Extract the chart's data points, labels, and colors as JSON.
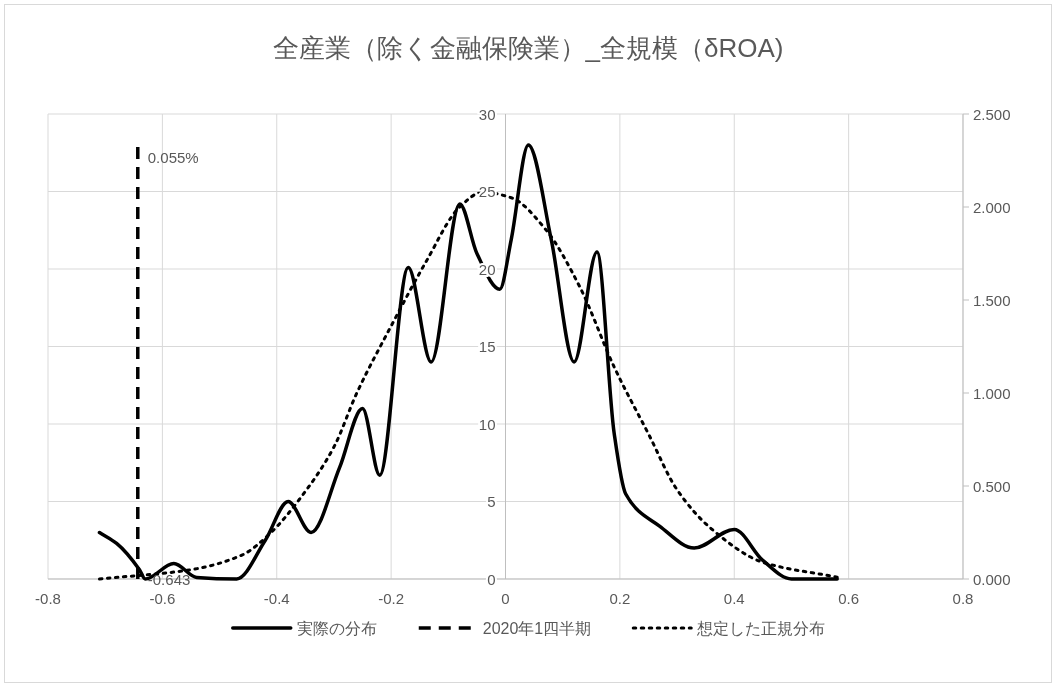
{
  "chart_data": {
    "type": "line",
    "title": "全産業（除く金融保険業）_全規模（δROA)",
    "series": [
      {
        "name": "実際の分布",
        "color": "#000000",
        "line_style": "solid",
        "x": [
          -0.71,
          -0.68,
          -0.64,
          -0.63,
          -0.58,
          -0.54,
          -0.47,
          -0.42,
          -0.38,
          -0.34,
          -0.29,
          -0.25,
          -0.22,
          -0.17,
          -0.13,
          -0.08,
          -0.05,
          -0.01,
          0.01,
          0.04,
          0.08,
          0.12,
          0.16,
          0.19,
          0.21,
          0.27,
          0.33,
          0.4,
          0.45,
          0.5,
          0.58
        ],
        "values": [
          3.0,
          2.3,
          0.6,
          0,
          1.0,
          0.1,
          0,
          2.5,
          5.0,
          3.0,
          7.2,
          11.0,
          6.7,
          20.1,
          14.0,
          24.2,
          21.0,
          18.7,
          21.9,
          28.0,
          21.9,
          14.0,
          21.1,
          9.4,
          5.5,
          3.4,
          2.0,
          3.2,
          1.2,
          0,
          0
        ]
      },
      {
        "name": "2020年1四半期",
        "color": "#000000",
        "line_style": "dashed",
        "x": [
          -0.643,
          -0.643
        ],
        "values": [
          0,
          28.1
        ]
      },
      {
        "name": "想定した正規分布",
        "color": "#000000",
        "line_style": "dotted",
        "axis": "y2",
        "x": [
          -0.71,
          -0.55,
          -0.46,
          -0.41,
          -0.36,
          -0.3,
          -0.26,
          -0.2,
          -0.14,
          -0.08,
          -0.04,
          0.01,
          0.07,
          0.13,
          0.19,
          0.25,
          0.3,
          0.36,
          0.45,
          0.58
        ],
        "values": [
          0,
          0.05,
          0.13,
          0.25,
          0.43,
          0.71,
          1.0,
          1.36,
          1.7,
          2.0,
          2.08,
          2.05,
          1.88,
          1.57,
          1.14,
          0.78,
          0.48,
          0.27,
          0.09,
          0.01
        ]
      }
    ],
    "xlim": [
      -0.8,
      0.8
    ],
    "xticks": [
      -0.8,
      -0.6,
      -0.4,
      -0.2,
      0,
      0.2,
      0.4,
      0.6,
      0.8
    ],
    "ylim": [
      0,
      30
    ],
    "yticks": [
      0,
      5,
      10,
      15,
      20,
      25,
      30
    ],
    "y2lim": [
      0,
      2.5
    ],
    "y2ticks": [
      {
        "value": 0,
        "label": "0.000"
      },
      {
        "value": 0.5,
        "label": "0.500"
      },
      {
        "value": 1,
        "label": "1.000"
      },
      {
        "value": 1.5,
        "label": "1.500"
      },
      {
        "value": 2,
        "label": "2.000"
      },
      {
        "value": 2.5,
        "label": "2.500"
      }
    ],
    "annotations": [
      {
        "text": "-0.643",
        "x": -0.643,
        "y": 0
      },
      {
        "text": "0.055%",
        "x": -0.643,
        "y": 28.1
      }
    ],
    "grid": true,
    "legend": "bottom"
  }
}
